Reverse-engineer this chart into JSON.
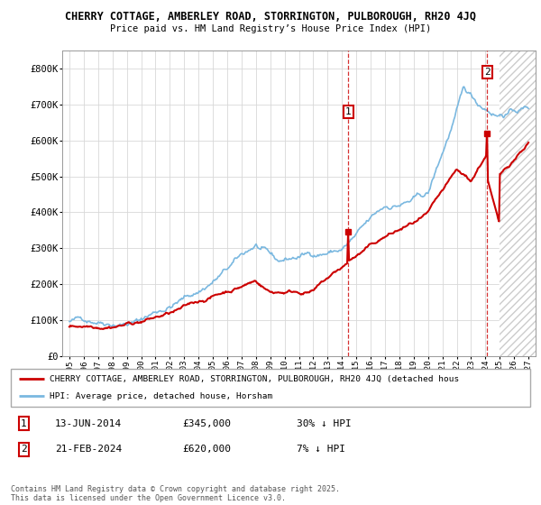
{
  "title_line1": "CHERRY COTTAGE, AMBERLEY ROAD, STORRINGTON, PULBOROUGH, RH20 4JQ",
  "title_line2": "Price paid vs. HM Land Registry’s House Price Index (HPI)",
  "ylim": [
    0,
    850000
  ],
  "yticks": [
    0,
    100000,
    200000,
    300000,
    400000,
    500000,
    600000,
    700000,
    800000
  ],
  "ytick_labels": [
    "£0",
    "£100K",
    "£200K",
    "£300K",
    "£400K",
    "£500K",
    "£600K",
    "£700K",
    "£800K"
  ],
  "hpi_color": "#7ab8e0",
  "price_color": "#cc0000",
  "sale1_year": 2014.45,
  "sale1_price": 345000,
  "sale2_year": 2024.13,
  "sale2_price": 620000,
  "sale1_label_price": "£345,000",
  "sale1_label_note": "30% ↓ HPI",
  "sale1_label_date": "13-JUN-2014",
  "sale2_label_price": "£620,000",
  "sale2_label_note": "7% ↓ HPI",
  "sale2_label_date": "21-FEB-2024",
  "legend_line1": "CHERRY COTTAGE, AMBERLEY ROAD, STORRINGTON, PULBOROUGH, RH20 4JQ (detached hous",
  "legend_line2": "HPI: Average price, detached house, Horsham",
  "footnote": "Contains HM Land Registry data © Crown copyright and database right 2025.\nThis data is licensed under the Open Government Licence v3.0.",
  "grid_color": "#d8d8d8",
  "hpi_linewidth": 1.2,
  "price_linewidth": 1.5,
  "xmin": 1994.5,
  "xmax": 2027.5,
  "hatch_start": 2025.0
}
